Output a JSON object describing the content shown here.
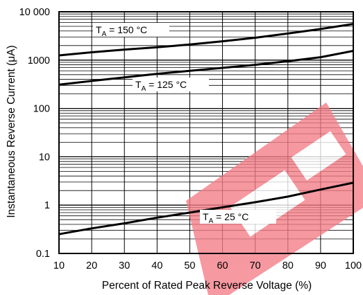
{
  "chart_data": {
    "type": "line",
    "title": "",
    "xlabel": "Percent of Rated Peak Reverse Voltage (%)",
    "ylabel": "Instantaneous Reverse Current (μA)",
    "xlim": [
      10,
      100
    ],
    "ylim": [
      0.1,
      10000
    ],
    "y_scale": "log",
    "grid": true,
    "x_ticks": [
      "10",
      "20",
      "30",
      "40",
      "50",
      "60",
      "70",
      "80",
      "90",
      "100"
    ],
    "y_ticks": [
      {
        "value": 0.1,
        "label": "0.1"
      },
      {
        "value": 1,
        "label": "1"
      },
      {
        "value": 10,
        "label": "10"
      },
      {
        "value": 100,
        "label": "100"
      },
      {
        "value": 1000,
        "label": "1000"
      },
      {
        "value": 10000,
        "label": "10 000"
      }
    ],
    "series": [
      {
        "name": "TA = 150 °C",
        "label_main": "T",
        "label_sub": "A",
        "label_rest": " = 150 °C",
        "x": [
          10,
          20,
          30,
          40,
          50,
          60,
          70,
          80,
          90,
          100
        ],
        "y": [
          1250,
          1450,
          1650,
          1850,
          2100,
          2450,
          2900,
          3550,
          4400,
          5600
        ]
      },
      {
        "name": "TA = 125 °C",
        "label_main": "T",
        "label_sub": "A",
        "label_rest": " = 125 °C",
        "x": [
          10,
          20,
          30,
          40,
          50,
          60,
          70,
          80,
          90,
          100
        ],
        "y": [
          310,
          370,
          440,
          520,
          600,
          690,
          800,
          950,
          1150,
          1550
        ]
      },
      {
        "name": "TA = 25 °C",
        "label_main": "T",
        "label_sub": "A",
        "label_rest": " = 25 °C",
        "x": [
          10,
          20,
          30,
          40,
          50,
          60,
          70,
          80,
          90,
          100
        ],
        "y": [
          0.25,
          0.33,
          0.42,
          0.55,
          0.7,
          0.9,
          1.15,
          1.5,
          2.1,
          2.9
        ]
      }
    ]
  }
}
